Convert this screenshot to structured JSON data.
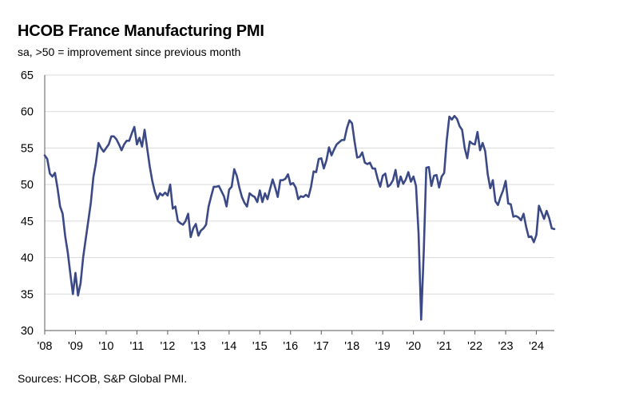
{
  "chart_data": {
    "type": "line",
    "title": "HCOB France Manufacturing PMI",
    "subtitle": "sa, >50 = improvement since previous month",
    "source": "Sources: HCOB, S&P Global PMI.",
    "ylim": [
      30,
      65
    ],
    "yticks": [
      30,
      35,
      40,
      45,
      50,
      55,
      60,
      65
    ],
    "xlim": [
      2008.0,
      2024.583
    ],
    "xticks": [
      {
        "value": 2008,
        "label": "'08"
      },
      {
        "value": 2009,
        "label": "'09"
      },
      {
        "value": 2010,
        "label": "'10"
      },
      {
        "value": 2011,
        "label": "'11"
      },
      {
        "value": 2012,
        "label": "'12"
      },
      {
        "value": 2013,
        "label": "'13"
      },
      {
        "value": 2014,
        "label": "'14"
      },
      {
        "value": 2015,
        "label": "'15"
      },
      {
        "value": 2016,
        "label": "'16"
      },
      {
        "value": 2017,
        "label": "'17"
      },
      {
        "value": 2018,
        "label": "'18"
      },
      {
        "value": 2019,
        "label": "'19"
      },
      {
        "value": 2020,
        "label": "'20"
      },
      {
        "value": 2021,
        "label": "'21"
      },
      {
        "value": 2022,
        "label": "'22"
      },
      {
        "value": 2023,
        "label": "'23"
      },
      {
        "value": 2024,
        "label": "'24"
      }
    ],
    "grid": true,
    "line_color": "#3b4a86",
    "series": [
      {
        "x": [
          2008.0,
          2008.083,
          2008.167,
          2008.25,
          2008.333,
          2008.417,
          2008.5,
          2008.583,
          2008.667,
          2008.75,
          2008.833,
          2008.917,
          2009.0,
          2009.083,
          2009.167,
          2009.25,
          2009.333,
          2009.417,
          2009.5,
          2009.583,
          2009.667,
          2009.75,
          2009.833,
          2009.917,
          2010.0,
          2010.083,
          2010.167,
          2010.25,
          2010.333,
          2010.417,
          2010.5,
          2010.583,
          2010.667,
          2010.75,
          2010.833,
          2010.917,
          2011.0,
          2011.083,
          2011.167,
          2011.25,
          2011.333,
          2011.417,
          2011.5,
          2011.583,
          2011.667,
          2011.75,
          2011.833,
          2011.917,
          2012.0,
          2012.083,
          2012.167,
          2012.25,
          2012.333,
          2012.417,
          2012.5,
          2012.583,
          2012.667,
          2012.75,
          2012.833,
          2012.917,
          2013.0,
          2013.083,
          2013.167,
          2013.25,
          2013.333,
          2013.417,
          2013.5,
          2013.583,
          2013.667,
          2013.75,
          2013.833,
          2013.917,
          2014.0,
          2014.083,
          2014.167,
          2014.25,
          2014.333,
          2014.417,
          2014.5,
          2014.583,
          2014.667,
          2014.75,
          2014.833,
          2014.917,
          2015.0,
          2015.083,
          2015.167,
          2015.25,
          2015.333,
          2015.417,
          2015.5,
          2015.583,
          2015.667,
          2015.75,
          2015.833,
          2015.917,
          2016.0,
          2016.083,
          2016.167,
          2016.25,
          2016.333,
          2016.417,
          2016.5,
          2016.583,
          2016.667,
          2016.75,
          2016.833,
          2016.917,
          2017.0,
          2017.083,
          2017.167,
          2017.25,
          2017.333,
          2017.417,
          2017.5,
          2017.583,
          2017.667,
          2017.75,
          2017.833,
          2017.917,
          2018.0,
          2018.083,
          2018.167,
          2018.25,
          2018.333,
          2018.417,
          2018.5,
          2018.583,
          2018.667,
          2018.75,
          2018.833,
          2018.917,
          2019.0,
          2019.083,
          2019.167,
          2019.25,
          2019.333,
          2019.417,
          2019.5,
          2019.583,
          2019.667,
          2019.75,
          2019.833,
          2019.917,
          2020.0,
          2020.083,
          2020.167,
          2020.25,
          2020.333,
          2020.417,
          2020.5,
          2020.583,
          2020.667,
          2020.75,
          2020.833,
          2020.917,
          2021.0,
          2021.083,
          2021.167,
          2021.25,
          2021.333,
          2021.417,
          2021.5,
          2021.583,
          2021.667,
          2021.75,
          2021.833,
          2021.917,
          2022.0,
          2022.083,
          2022.167,
          2022.25,
          2022.333,
          2022.417,
          2022.5,
          2022.583,
          2022.667,
          2022.75,
          2022.833,
          2022.917,
          2023.0,
          2023.083,
          2023.167,
          2023.25,
          2023.333,
          2023.417,
          2023.5,
          2023.583,
          2023.667,
          2023.75,
          2023.833,
          2023.917,
          2024.0,
          2024.083,
          2024.167,
          2024.25,
          2024.333,
          2024.417,
          2024.5,
          2024.583
        ],
        "values": [
          54.0,
          53.5,
          51.5,
          51.1,
          51.6,
          49.5,
          47.0,
          46.0,
          42.9,
          40.7,
          37.8,
          35.0,
          37.9,
          34.8,
          36.5,
          40.0,
          42.5,
          45.0,
          47.5,
          51.0,
          53.0,
          55.7,
          55.0,
          54.5,
          55.0,
          55.5,
          56.6,
          56.6,
          56.2,
          55.5,
          54.7,
          55.5,
          56.0,
          56.0,
          57.0,
          57.9,
          55.5,
          56.4,
          55.2,
          57.5,
          55.0,
          52.5,
          50.5,
          49.0,
          48.0,
          48.8,
          48.5,
          48.9,
          48.5,
          50.0,
          46.7,
          47.0,
          45.0,
          44.7,
          44.5,
          45.0,
          46.0,
          42.8,
          44.0,
          44.6,
          43.0,
          43.7,
          44.0,
          44.5,
          47.0,
          48.4,
          49.7,
          49.7,
          49.8,
          49.1,
          48.4,
          47.0,
          49.3,
          49.7,
          52.1,
          51.2,
          49.6,
          48.3,
          47.5,
          47.0,
          48.8,
          48.5,
          48.3,
          47.6,
          49.2,
          47.6,
          48.8,
          48.0,
          49.4,
          50.7,
          49.6,
          48.3,
          50.6,
          50.6,
          50.8,
          51.4,
          50.0,
          50.2,
          49.6,
          48.0,
          48.4,
          48.3,
          48.6,
          48.3,
          49.7,
          51.8,
          51.7,
          53.5,
          53.6,
          52.2,
          53.3,
          55.1,
          54.0,
          54.8,
          55.5,
          55.8,
          56.1,
          56.1,
          57.7,
          58.8,
          58.4,
          55.9,
          53.7,
          53.8,
          54.4,
          53.0,
          52.8,
          53.0,
          52.2,
          52.2,
          50.8,
          49.7,
          51.2,
          51.5,
          49.7,
          50.0,
          50.6,
          52.0,
          49.7,
          51.1,
          50.1,
          50.7,
          51.7,
          50.4,
          51.1,
          49.8,
          43.2,
          31.5,
          40.6,
          52.3,
          52.4,
          49.8,
          51.2,
          51.3,
          49.6,
          51.1,
          51.6,
          56.1,
          59.3,
          58.9,
          59.4,
          59.0,
          58.0,
          57.5,
          55.0,
          53.6,
          55.9,
          55.6,
          55.5,
          57.2,
          54.7,
          55.7,
          54.6,
          51.4,
          49.5,
          50.6,
          47.7,
          47.2,
          48.3,
          49.2,
          50.5,
          47.4,
          47.3,
          45.6,
          45.7,
          45.5,
          45.1,
          46.0,
          44.2,
          42.8,
          42.9,
          42.1,
          43.1,
          47.1,
          46.2,
          45.3,
          46.4,
          45.4,
          44.0,
          43.9
        ]
      }
    ]
  }
}
